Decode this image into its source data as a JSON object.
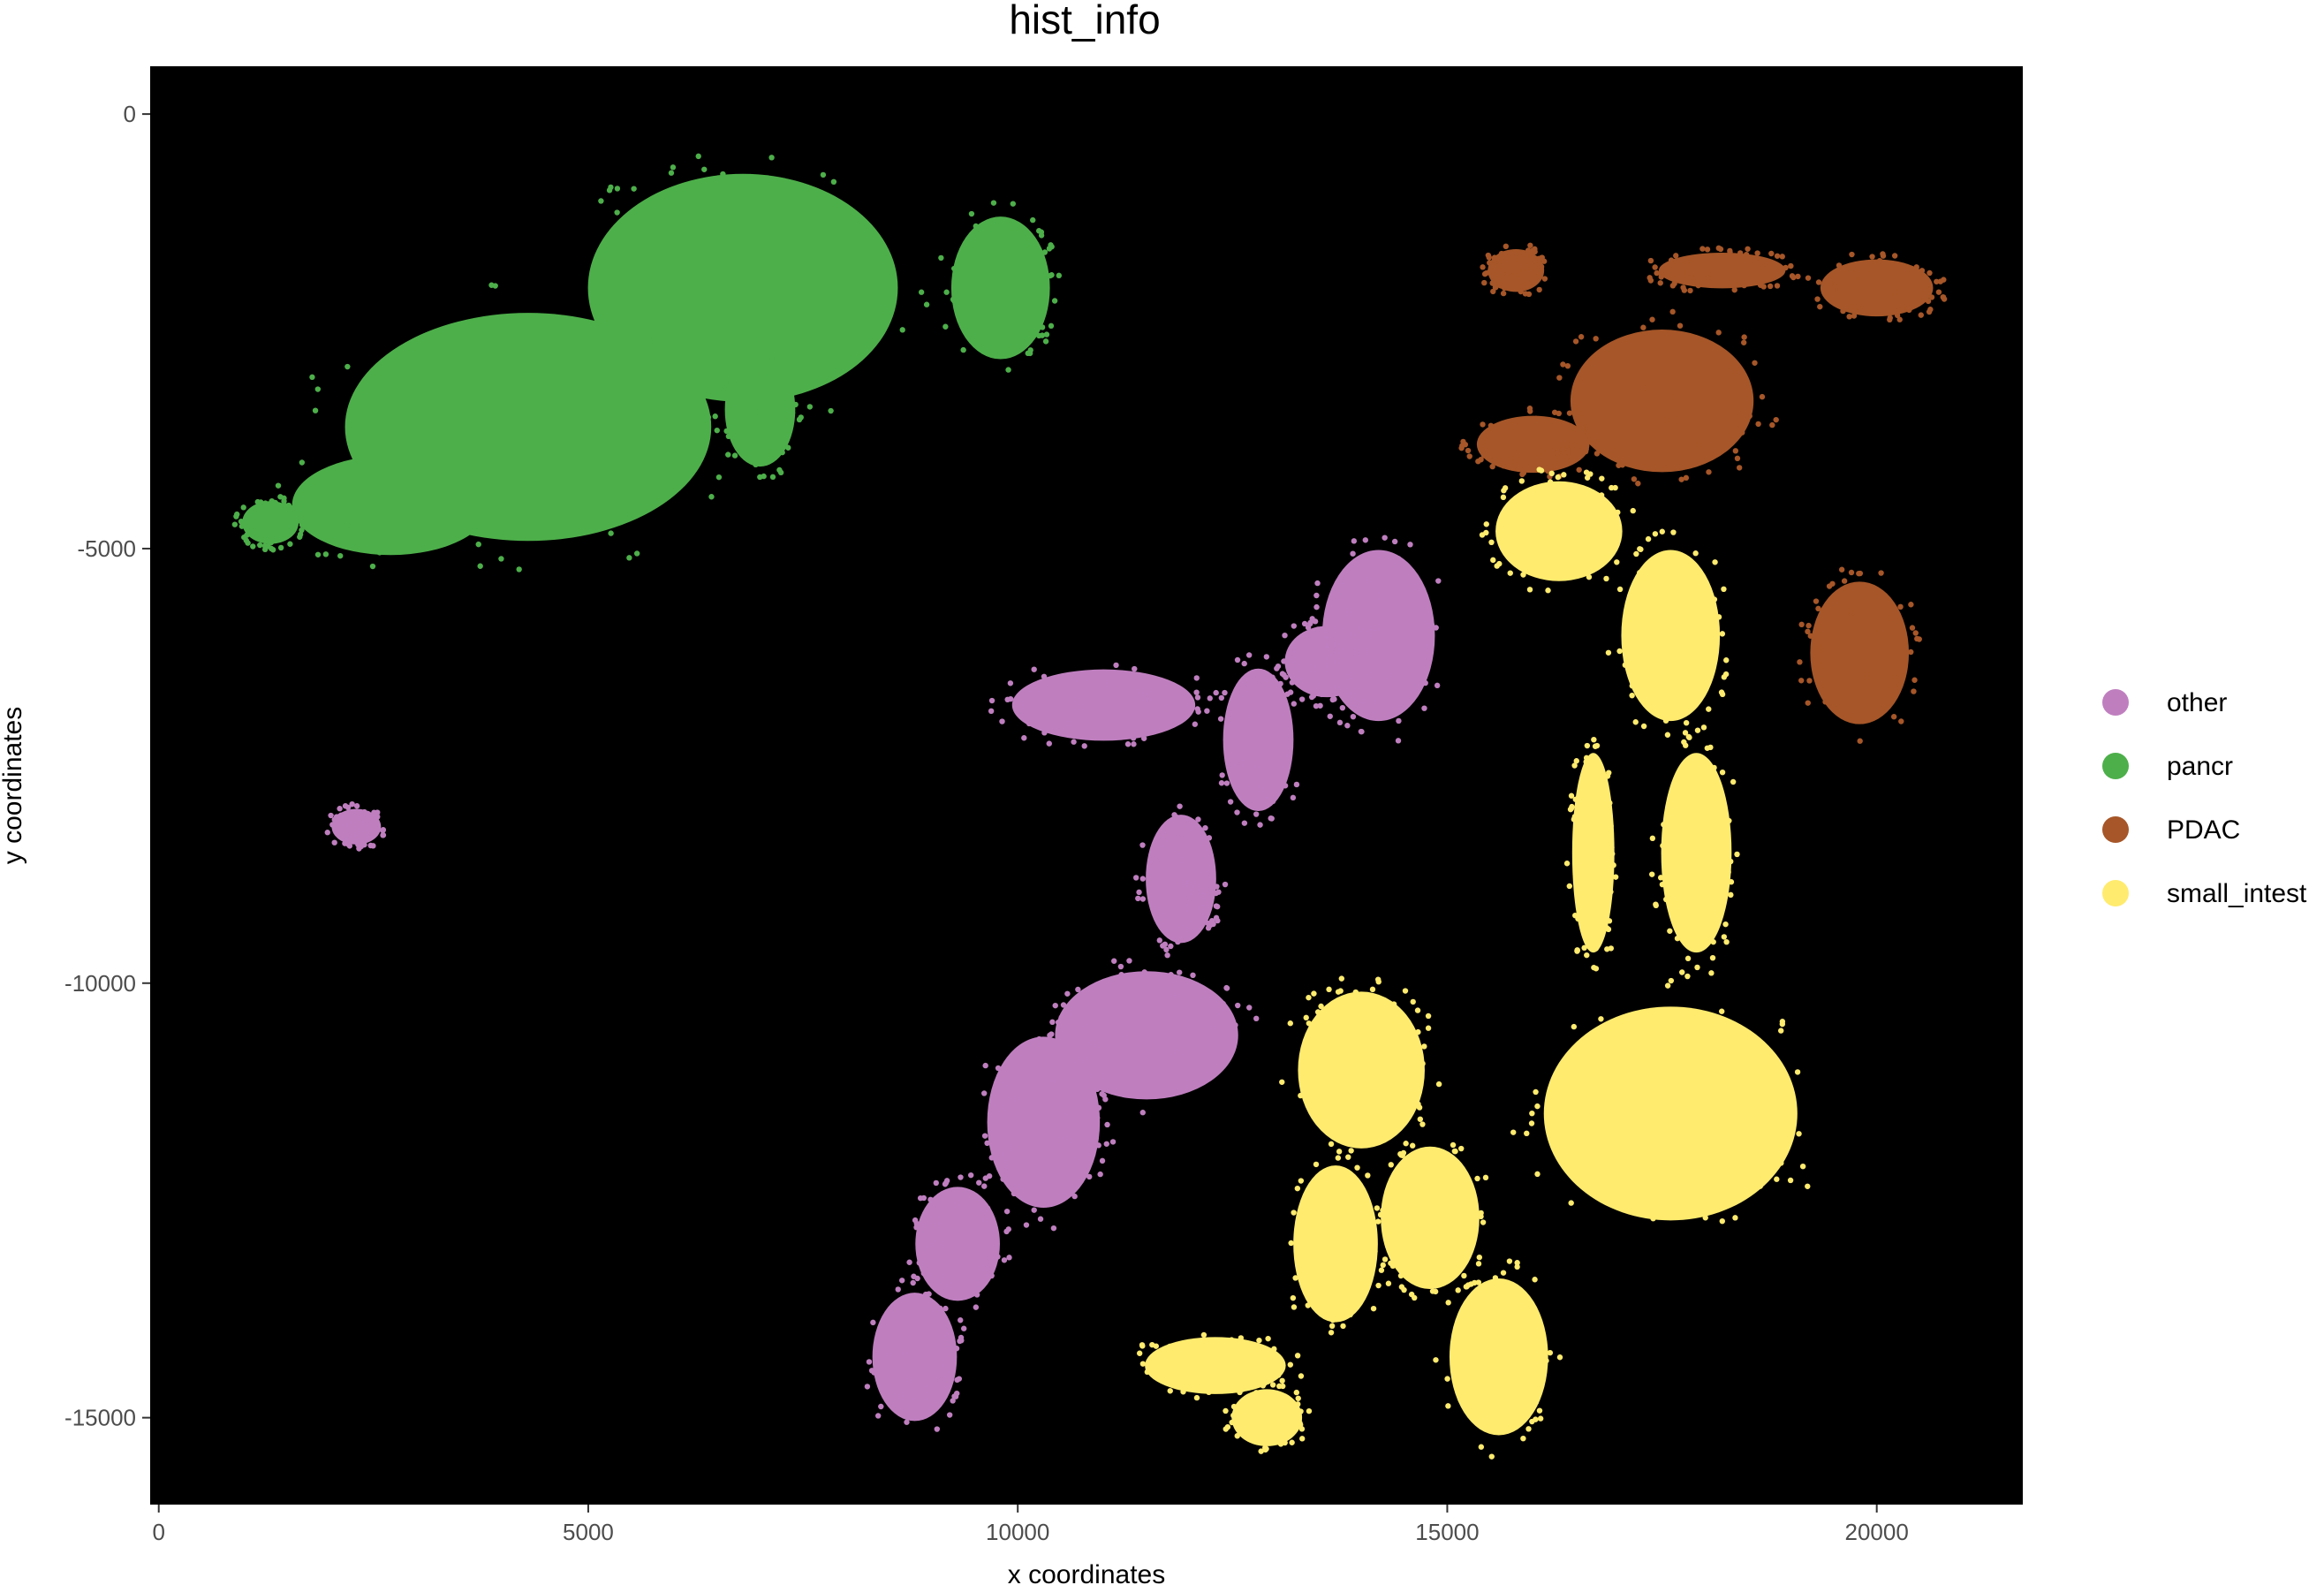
{
  "chart_data": {
    "type": "scatter",
    "title": "hist_info",
    "xlabel": "x coordinates",
    "ylabel": "y coordinates",
    "xlim": [
      -100,
      21700
    ],
    "ylim": [
      -16000,
      550
    ],
    "x_ticks": [
      0,
      5000,
      10000,
      15000,
      20000
    ],
    "y_ticks": [
      0,
      -5000,
      -10000,
      -15000
    ],
    "x_tick_labels": [
      "0",
      "5000",
      "10000",
      "15000",
      "20000"
    ],
    "y_tick_labels": [
      "0",
      "-5000",
      "-10000",
      "-15000"
    ],
    "background": "#000000",
    "grid": false,
    "legend_position": "right",
    "series": [
      {
        "name": "other",
        "color": "#BF7FBF",
        "regions": [
          {
            "x": 14200,
            "y": -6000,
            "rx": 800,
            "ry": 1200
          },
          {
            "x": 13600,
            "y": -6300,
            "rx": 600,
            "ry": 500
          },
          {
            "x": 11000,
            "y": -6800,
            "rx": 1300,
            "ry": 500
          },
          {
            "x": 12800,
            "y": -7200,
            "rx": 500,
            "ry": 1000
          },
          {
            "x": 11900,
            "y": -8800,
            "rx": 500,
            "ry": 900
          },
          {
            "x": 11500,
            "y": -10600,
            "rx": 1300,
            "ry": 900
          },
          {
            "x": 10300,
            "y": -11600,
            "rx": 800,
            "ry": 1200
          },
          {
            "x": 9300,
            "y": -13000,
            "rx": 600,
            "ry": 800
          },
          {
            "x": 8800,
            "y": -14300,
            "rx": 600,
            "ry": 900
          },
          {
            "x": 2300,
            "y": -8200,
            "rx": 350,
            "ry": 250
          }
        ]
      },
      {
        "name": "pancr",
        "color": "#4DAF4A",
        "regions": [
          {
            "x": 6800,
            "y": -2000,
            "rx": 2200,
            "ry": 1600
          },
          {
            "x": 4300,
            "y": -3600,
            "rx": 2600,
            "ry": 1600
          },
          {
            "x": 2700,
            "y": -4500,
            "rx": 1400,
            "ry": 700
          },
          {
            "x": 9800,
            "y": -2000,
            "rx": 700,
            "ry": 1000
          },
          {
            "x": 7000,
            "y": -3400,
            "rx": 500,
            "ry": 800
          },
          {
            "x": 1300,
            "y": -4700,
            "rx": 400,
            "ry": 300
          }
        ]
      },
      {
        "name": "PDAC",
        "color": "#A65628",
        "regions": [
          {
            "x": 17500,
            "y": -3300,
            "rx": 1300,
            "ry": 1000
          },
          {
            "x": 16000,
            "y": -3800,
            "rx": 800,
            "ry": 400
          },
          {
            "x": 20000,
            "y": -2000,
            "rx": 800,
            "ry": 400
          },
          {
            "x": 18200,
            "y": -1800,
            "rx": 900,
            "ry": 250
          },
          {
            "x": 15800,
            "y": -1800,
            "rx": 400,
            "ry": 300
          },
          {
            "x": 19800,
            "y": -6200,
            "rx": 700,
            "ry": 1000
          }
        ]
      },
      {
        "name": "small_intest",
        "color": "#FFEB6E",
        "regions": [
          {
            "x": 16300,
            "y": -4800,
            "rx": 900,
            "ry": 700
          },
          {
            "x": 17600,
            "y": -6000,
            "rx": 700,
            "ry": 1200
          },
          {
            "x": 17900,
            "y": -8500,
            "rx": 500,
            "ry": 1400
          },
          {
            "x": 17600,
            "y": -11500,
            "rx": 1800,
            "ry": 1500
          },
          {
            "x": 14000,
            "y": -11000,
            "rx": 900,
            "ry": 1100
          },
          {
            "x": 13700,
            "y": -13000,
            "rx": 600,
            "ry": 1100
          },
          {
            "x": 14800,
            "y": -12700,
            "rx": 700,
            "ry": 1000
          },
          {
            "x": 15600,
            "y": -14300,
            "rx": 700,
            "ry": 1100
          },
          {
            "x": 12300,
            "y": -14400,
            "rx": 1000,
            "ry": 400
          },
          {
            "x": 12900,
            "y": -15000,
            "rx": 500,
            "ry": 400
          },
          {
            "x": 16700,
            "y": -8500,
            "rx": 300,
            "ry": 1400
          }
        ]
      }
    ]
  }
}
